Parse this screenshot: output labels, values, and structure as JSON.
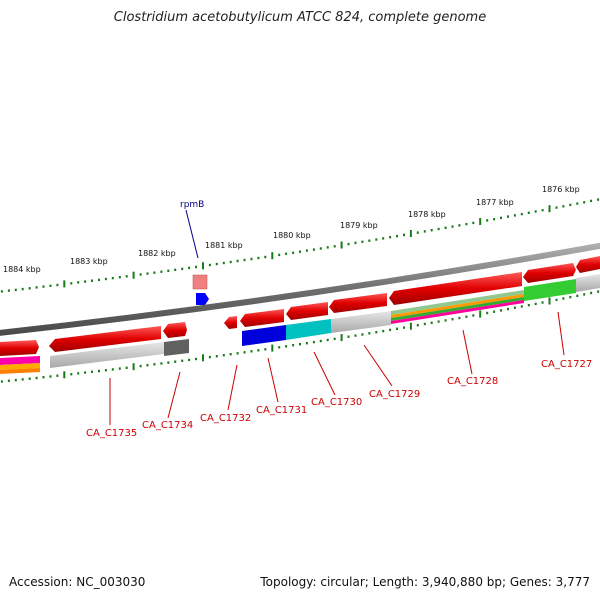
{
  "title": "Clostridium acetobutylicum ATCC 824, complete genome",
  "footer": {
    "accession": "Accession: NC_003030",
    "summary": "Topology: circular; Length: 3,940,880 bp; Genes: 3,777"
  },
  "kbp_ticks": [
    "1884 kbp",
    "1883 kbp",
    "1882 kbp",
    "1881 kbp",
    "1880 kbp",
    "1879 kbp",
    "1878 kbp",
    "1877 kbp",
    "1876 kbp"
  ],
  "gene_labels_top": [
    "rpmB"
  ],
  "gene_labels_bottom": [
    "CA_C1735",
    "CA_C1734",
    "CA_C1732",
    "CA_C1731",
    "CA_C1730",
    "CA_C1729",
    "CA_C1728",
    "CA_C1727"
  ],
  "colors": {
    "backbone": "#7a7a7a",
    "gene_forward": "#e00000",
    "tick_dots": "#1a7a1a",
    "label_red": "#cc0000",
    "label_blue": "#00008b"
  }
}
